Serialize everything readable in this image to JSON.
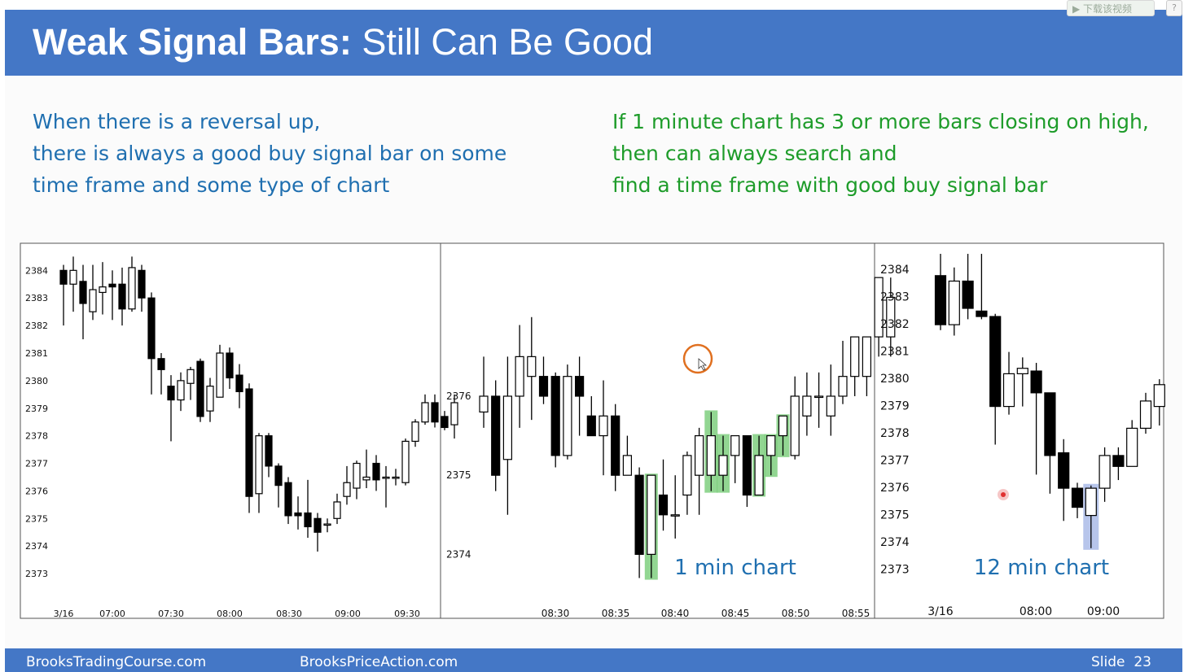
{
  "title": {
    "bold": "Weak Signal Bars:",
    "rest": " Still Can Be Good"
  },
  "player_toolbar": {
    "download_label": "▶ 下载该视频",
    "help_label": "?"
  },
  "left_text": [
    "When there is a reversal up,",
    "there is always a good buy signal bar on some",
    "time frame and some type of chart"
  ],
  "right_text": [
    "If 1 minute chart has 3 or more bars closing on high,",
    "then can always search and",
    "find a time frame with good buy signal bar"
  ],
  "colors": {
    "title_bar": "#4477c6",
    "left_text": "#1f6fb0",
    "right_text": "#1e9c2a",
    "highlight_green": "#7fcf7f",
    "highlight_blue": "#aabbe8",
    "annotation": "#1f6fb0",
    "circle": "#e07020",
    "dot": "#e03030"
  },
  "chart_data": [
    {
      "type": "candlestick",
      "name_label": "",
      "y_ticks": [
        2373,
        2374,
        2375,
        2376,
        2377,
        2378,
        2379,
        2380,
        2381,
        2382,
        2383,
        2384
      ],
      "x_ticks": [
        "3/16",
        "07:00",
        "07:30",
        "08:00",
        "08:30",
        "09:00",
        "09:30"
      ],
      "ylim": [
        2372.5,
        2384.6
      ],
      "candles": [
        [
          2384.0,
          2383.5,
          2384.2,
          2382.0
        ],
        [
          2383.5,
          2384.0,
          2384.5,
          2382.5
        ],
        [
          2383.6,
          2382.8,
          2384.2,
          2381.5
        ],
        [
          2382.5,
          2383.3,
          2384.2,
          2382.2
        ],
        [
          2383.2,
          2383.4,
          2384.3,
          2382.4
        ],
        [
          2383.5,
          2383.4,
          2384.0,
          2382.2
        ],
        [
          2383.5,
          2382.6,
          2384.1,
          2382.0
        ],
        [
          2382.6,
          2384.1,
          2384.5,
          2382.5
        ],
        [
          2384.0,
          2383.0,
          2384.2,
          2382.5
        ],
        [
          2383.0,
          2380.8,
          2383.2,
          2379.5
        ],
        [
          2380.8,
          2380.4,
          2381.0,
          2379.5
        ],
        [
          2379.8,
          2379.3,
          2380.2,
          2377.8
        ],
        [
          2379.3,
          2380.0,
          2380.3,
          2378.9
        ],
        [
          2379.9,
          2380.4,
          2380.5,
          2379.3
        ],
        [
          2380.7,
          2378.7,
          2380.8,
          2378.5
        ],
        [
          2378.9,
          2379.8,
          2380.1,
          2378.5
        ],
        [
          2379.4,
          2381.0,
          2381.3,
          2379.4
        ],
        [
          2381.0,
          2380.1,
          2381.2,
          2379.7
        ],
        [
          2380.2,
          2379.6,
          2380.6,
          2379.0
        ],
        [
          2379.7,
          2375.8,
          2379.9,
          2375.2
        ],
        [
          2375.9,
          2378.0,
          2378.1,
          2375.2
        ],
        [
          2378.0,
          2376.9,
          2378.1,
          2376.5
        ],
        [
          2376.9,
          2376.2,
          2377.0,
          2375.4
        ],
        [
          2376.3,
          2375.1,
          2376.5,
          2374.8
        ],
        [
          2375.2,
          2375.1,
          2375.8,
          2374.6
        ],
        [
          2375.2,
          2374.7,
          2376.4,
          2374.3
        ],
        [
          2375.0,
          2374.5,
          2375.2,
          2373.8
        ],
        [
          2374.8,
          2374.8,
          2375.0,
          2374.5
        ],
        [
          2375.0,
          2375.6,
          2375.9,
          2374.8
        ],
        [
          2375.8,
          2376.3,
          2376.9,
          2375.5
        ],
        [
          2376.1,
          2377.0,
          2377.1,
          2375.7
        ],
        [
          2376.4,
          2376.5,
          2377.5,
          2376.1
        ],
        [
          2377.0,
          2376.4,
          2377.3,
          2376.0
        ],
        [
          2376.5,
          2376.5,
          2376.9,
          2375.4
        ],
        [
          2376.5,
          2376.5,
          2376.8,
          2376.2
        ],
        [
          2376.3,
          2377.8,
          2377.9,
          2376.2
        ],
        [
          2377.8,
          2378.5,
          2378.6,
          2377.6
        ],
        [
          2378.5,
          2379.2,
          2379.5,
          2378.4
        ],
        [
          2379.2,
          2378.5,
          2379.5,
          2378.3
        ],
        [
          2378.7,
          2378.3,
          2378.9,
          2378.2
        ],
        [
          2378.4,
          2379.2,
          2379.5,
          2377.9
        ]
      ]
    },
    {
      "type": "candlestick",
      "y_ticks": [
        2374,
        2375,
        2376
      ],
      "x_ticks": [
        "08:30",
        "08:35",
        "08:40",
        "08:45",
        "08:50",
        "08:55"
      ],
      "ylim": [
        2373.5,
        2377.8
      ],
      "annotation": "1 min chart",
      "candles": [
        [
          2375.8,
          2376.0,
          2376.5,
          2375.6
        ],
        [
          2376.0,
          2375.0,
          2376.2,
          2374.8
        ],
        [
          2375.2,
          2376.0,
          2376.5,
          2374.5
        ],
        [
          2376.0,
          2376.5,
          2376.9,
          2375.6
        ],
        [
          2376.25,
          2376.5,
          2377.0,
          2375.7
        ],
        [
          2376.25,
          2376.0,
          2376.5,
          2375.9
        ],
        [
          2376.25,
          2375.25,
          2376.3,
          2375.1
        ],
        [
          2375.25,
          2376.25,
          2376.4,
          2375.2
        ],
        [
          2376.25,
          2376.0,
          2376.5,
          2375.5
        ],
        [
          2375.75,
          2375.5,
          2376.0,
          2375.6
        ],
        [
          2375.5,
          2375.75,
          2376.2,
          2375.0
        ],
        [
          2375.75,
          2375.0,
          2375.9,
          2374.8
        ],
        [
          2375.0,
          2375.25,
          2375.5,
          2375.0
        ],
        [
          2375.0,
          2374.0,
          2375.1,
          2373.7
        ],
        [
          2374.0,
          2375.0,
          2375.0,
          2373.7
        ],
        [
          2374.75,
          2374.5,
          2375.2,
          2374.3
        ],
        [
          2374.5,
          2374.5,
          2375.0,
          2374.2
        ],
        [
          2374.75,
          2375.25,
          2375.3,
          2374.5
        ],
        [
          2375.0,
          2375.5,
          2375.6,
          2374.5
        ],
        [
          2375.0,
          2375.5,
          2375.8,
          2374.8
        ],
        [
          2375.0,
          2375.25,
          2375.5,
          2374.8
        ],
        [
          2375.25,
          2375.5,
          2375.5,
          2374.9
        ],
        [
          2375.5,
          2374.75,
          2375.5,
          2374.6
        ],
        [
          2374.75,
          2375.25,
          2375.5,
          2374.75
        ],
        [
          2375.25,
          2375.5,
          2375.5,
          2375.0
        ],
        [
          2375.5,
          2375.75,
          2375.75,
          2375.25
        ],
        [
          2375.25,
          2376.0,
          2376.25,
          2375.2
        ],
        [
          2375.75,
          2376.0,
          2376.3,
          2375.5
        ],
        [
          2376.0,
          2376.0,
          2376.3,
          2375.6
        ],
        [
          2375.75,
          2376.0,
          2376.4,
          2375.5
        ],
        [
          2376.0,
          2376.25,
          2376.7,
          2375.9
        ],
        [
          2376.25,
          2376.75,
          2376.75,
          2376.0
        ],
        [
          2376.25,
          2376.75,
          2376.75,
          2376.0
        ],
        [
          2376.75,
          2377.5,
          2377.5,
          2376.5
        ],
        [
          2376.75,
          2377.25,
          2377.5,
          2376.5
        ]
      ]
    },
    {
      "type": "candlestick",
      "y_ticks": [
        2373,
        2374,
        2375,
        2376,
        2377,
        2378,
        2379,
        2380,
        2381,
        2382,
        2383,
        2384
      ],
      "x_ticks": [
        "3/16",
        "08:00",
        "09:00"
      ],
      "ylim": [
        2372.6,
        2384.6
      ],
      "annotation": "12 min chart",
      "candles": [
        [
          2383.8,
          2382.0,
          2384.6,
          2381.8
        ],
        [
          2382.0,
          2383.6,
          2384.1,
          2381.6
        ],
        [
          2383.6,
          2382.6,
          2384.6,
          2382.2
        ],
        [
          2382.5,
          2382.3,
          2384.6,
          2382.2
        ],
        [
          2382.3,
          2379.0,
          2382.4,
          2377.6
        ],
        [
          2379.0,
          2380.2,
          2381.0,
          2378.7
        ],
        [
          2380.2,
          2380.4,
          2380.8,
          2379.0
        ],
        [
          2380.3,
          2379.5,
          2380.6,
          2376.5
        ],
        [
          2379.5,
          2377.2,
          2379.5,
          2375.8
        ],
        [
          2377.3,
          2376.0,
          2377.8,
          2374.8
        ],
        [
          2376.0,
          2375.3,
          2376.2,
          2374.9
        ],
        [
          2375.0,
          2376.0,
          2376.1,
          2373.8
        ],
        [
          2376.0,
          2377.2,
          2377.5,
          2375.5
        ],
        [
          2377.2,
          2376.8,
          2377.5,
          2376.3
        ],
        [
          2376.8,
          2378.2,
          2378.5,
          2376.8
        ],
        [
          2378.2,
          2379.2,
          2379.5,
          2378.0
        ],
        [
          2379.0,
          2379.8,
          2380.0,
          2378.3
        ]
      ]
    }
  ],
  "footer": {
    "left": "BrooksTradingCourse.com",
    "middle": "BrooksPriceAction.com",
    "slide_label": "Slide",
    "slide_number": "23"
  }
}
